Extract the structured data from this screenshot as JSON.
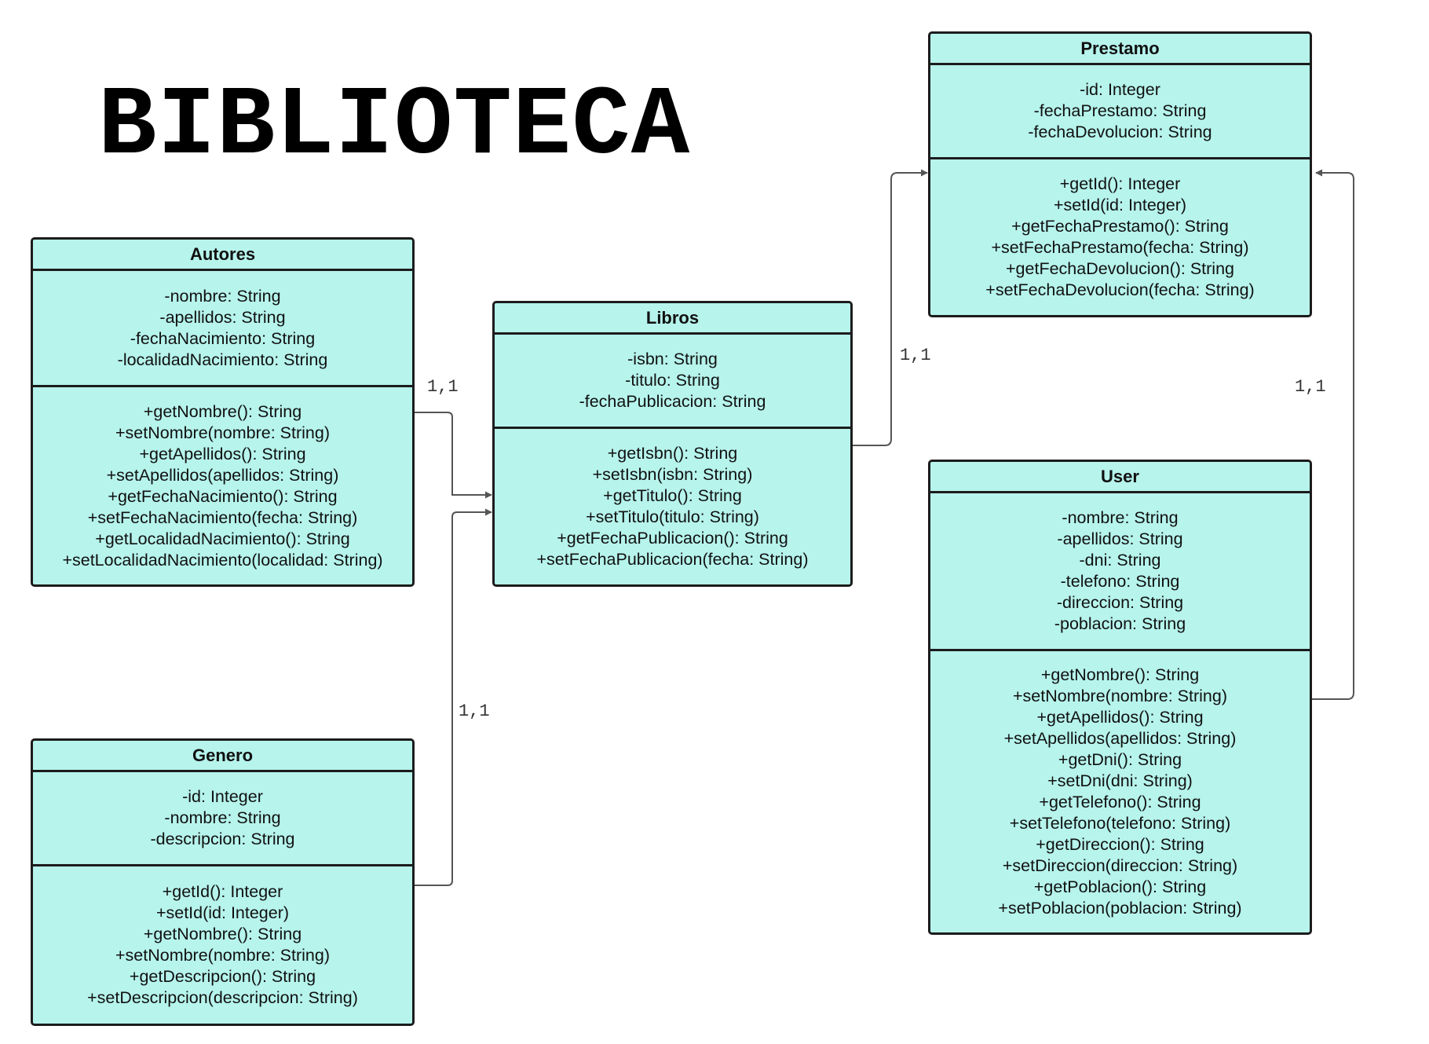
{
  "title": "BIBLIOTECA",
  "colors": {
    "class_fill": "#b6f4ec",
    "border": "#1c1c1c",
    "connector": "#555555"
  },
  "classes": [
    {
      "id": "autores",
      "name": "Autores",
      "attributes": [
        "-nombre: String",
        "-apellidos: String",
        "-fechaNacimiento: String",
        "-localidadNacimiento: String"
      ],
      "methods": [
        "+getNombre(): String",
        "+setNombre(nombre: String)",
        "+getApellidos(): String",
        "+setApellidos(apellidos: String)",
        "+getFechaNacimiento(): String",
        "+setFechaNacimiento(fecha: String)",
        "+getLocalidadNacimiento(): String",
        "+setLocalidadNacimiento(localidad: String)"
      ]
    },
    {
      "id": "libros",
      "name": "Libros",
      "attributes": [
        "-isbn: String",
        "-titulo: String",
        "-fechaPublicacion: String"
      ],
      "methods": [
        "+getIsbn(): String",
        "+setIsbn(isbn: String)",
        "+getTitulo(): String",
        "+setTitulo(titulo: String)",
        "+getFechaPublicacion(): String",
        "+setFechaPublicacion(fecha: String)"
      ]
    },
    {
      "id": "prestamo",
      "name": "Prestamo",
      "attributes": [
        "-id: Integer",
        "-fechaPrestamo: String",
        "-fechaDevolucion: String"
      ],
      "methods": [
        "+getId(): Integer",
        "+setId(id: Integer)",
        "+getFechaPrestamo(): String",
        "+setFechaPrestamo(fecha: String)",
        "+getFechaDevolucion(): String",
        "+setFechaDevolucion(fecha: String)"
      ]
    },
    {
      "id": "genero",
      "name": "Genero",
      "attributes": [
        "-id: Integer",
        "-nombre: String",
        "-descripcion: String"
      ],
      "methods": [
        "+getId(): Integer",
        "+setId(id: Integer)",
        "+getNombre(): String",
        "+setNombre(nombre: String)",
        "+getDescripcion(): String",
        "+setDescripcion(descripcion: String)"
      ]
    },
    {
      "id": "user",
      "name": "User",
      "attributes": [
        "-nombre: String",
        "-apellidos: String",
        "-dni: String",
        "-telefono: String",
        "-direccion: String",
        "-poblacion: String"
      ],
      "methods": [
        "+getNombre(): String",
        "+setNombre(nombre: String)",
        "+getApellidos(): String",
        "+setApellidos(apellidos: String)",
        "+getDni(): String",
        "+setDni(dni: String)",
        "+getTelefono(): String",
        "+setTelefono(telefono: String)",
        "+getDireccion(): String",
        "+setDireccion(direccion: String)",
        "+getPoblacion(): String",
        "+setPoblacion(poblacion: String)"
      ]
    }
  ],
  "associations": [
    {
      "from": "Autores",
      "to": "Libros",
      "multiplicity": "1,1"
    },
    {
      "from": "Genero",
      "to": "Libros",
      "multiplicity": "1,1"
    },
    {
      "from": "Libros",
      "to": "Prestamo",
      "multiplicity": "1,1"
    },
    {
      "from": "User",
      "to": "Prestamo",
      "multiplicity": "1,1"
    }
  ]
}
